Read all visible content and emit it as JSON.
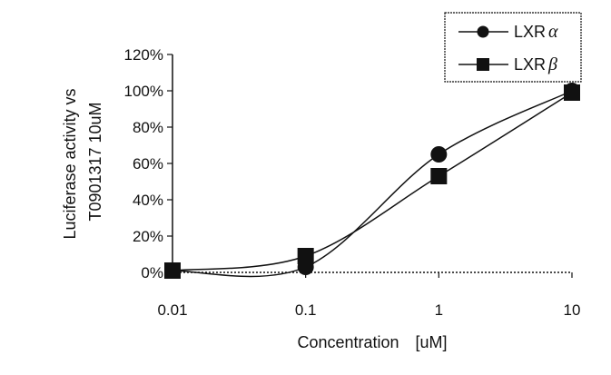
{
  "chart_data": {
    "type": "line",
    "x_scale": "log",
    "x": [
      0.01,
      0.1,
      1,
      10
    ],
    "xticks": [
      "0.01",
      "0.1",
      "1",
      "10"
    ],
    "ylim": [
      0,
      120
    ],
    "yticks": [
      "0%",
      "20%",
      "40%",
      "60%",
      "80%",
      "100%",
      "120%"
    ],
    "ylabel_lines": [
      "Luciferase activity vs",
      "T0901317 10uM"
    ],
    "xlabel": "Concentration　[uM]",
    "grid": false,
    "legend_position": "top-right",
    "series": [
      {
        "name_prefix": "LXR",
        "name_greek": "α",
        "marker": "circle",
        "values": [
          1,
          3,
          65,
          100
        ]
      },
      {
        "name_prefix": "LXR",
        "name_greek": "β",
        "marker": "square",
        "values": [
          1,
          9,
          53,
          99
        ]
      }
    ]
  }
}
